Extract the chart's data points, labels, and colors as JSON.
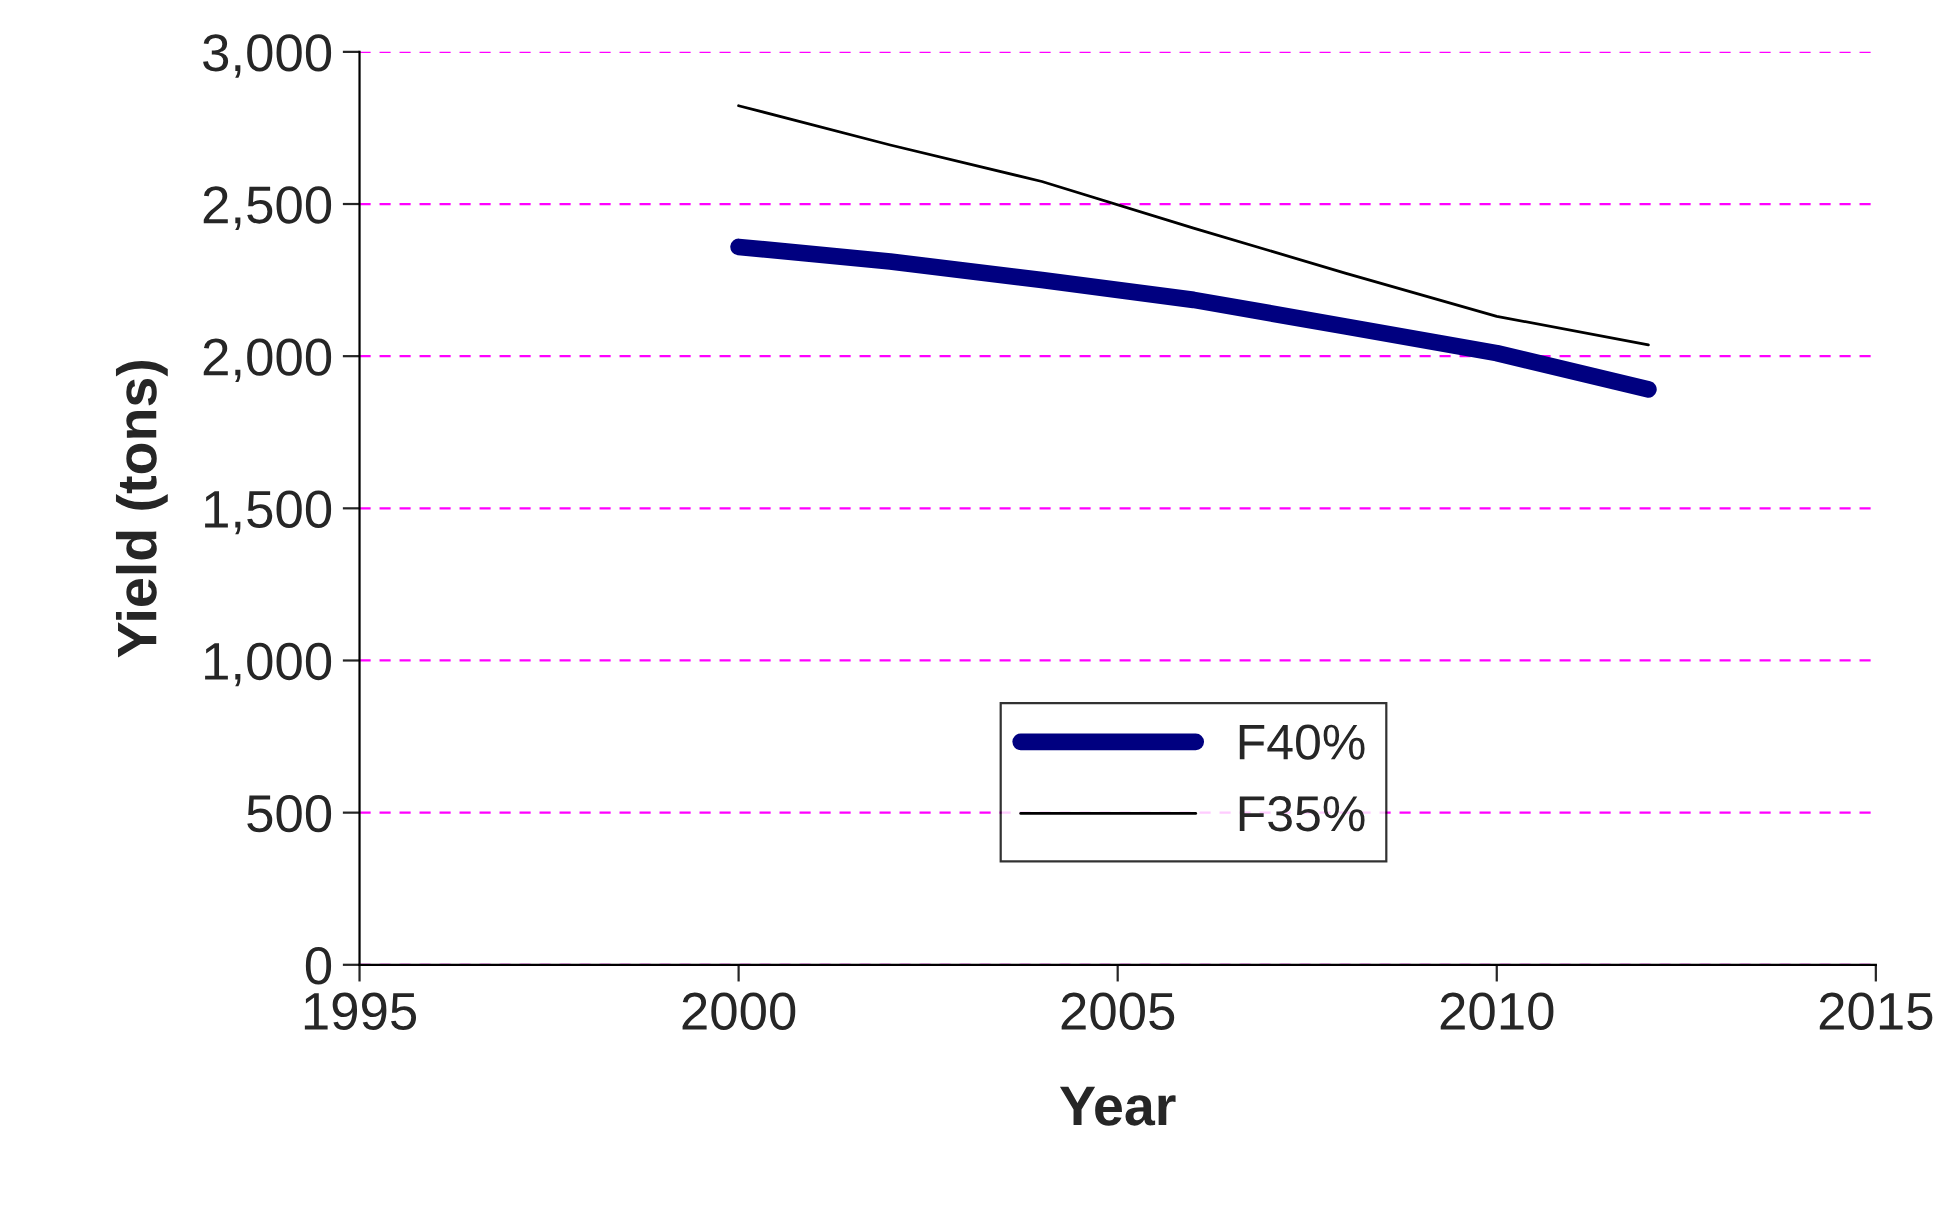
{
  "chart_data": {
    "type": "line",
    "xlabel": "Year",
    "ylabel": "Yield (tons)",
    "x": [
      2000,
      2002,
      2004,
      2006,
      2008,
      2010,
      2012
    ],
    "series": [
      {
        "name": "F40%",
        "color": "#000080",
        "values": [
          2359,
          2311,
          2250,
          2185,
          2098,
          2010,
          1891
        ]
      },
      {
        "name": "F35%",
        "color": "#000000",
        "values": [
          2823,
          2694,
          2574,
          2421,
          2273,
          2131,
          2037
        ]
      }
    ],
    "xlim": [
      1995,
      2015
    ],
    "xticks": [
      1995,
      2000,
      2005,
      2010,
      2015
    ],
    "ylim": [
      0,
      3000
    ],
    "yticks": [
      {
        "value": 0,
        "label": "0"
      },
      {
        "value": 500,
        "label": "500"
      },
      {
        "value": 1000,
        "label": "1,000"
      },
      {
        "value": 1500,
        "label": "1,500"
      },
      {
        "value": 2000,
        "label": "2,000"
      },
      {
        "value": 2500,
        "label": "2,500"
      },
      {
        "value": 3000,
        "label": "3,000"
      }
    ],
    "grid": "y",
    "legend": "bottom",
    "marker": "none",
    "line_style": "solid"
  }
}
